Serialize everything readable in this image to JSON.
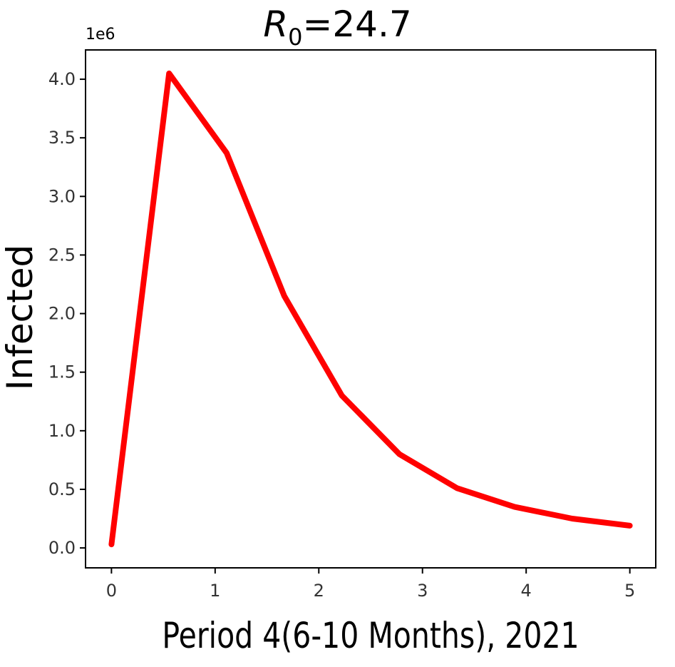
{
  "chart_data": {
    "type": "line",
    "title_symbol": "R",
    "title_subscript": "0",
    "title_rest": "=24.7",
    "xlabel": "Period 4(6-10 Months), 2021",
    "ylabel": "Infected",
    "y_offset_label": "1e6",
    "xlim": [
      -0.25,
      5.25
    ],
    "ylim": [
      -0.17,
      4.25
    ],
    "x_ticks": [
      0,
      1,
      2,
      3,
      4,
      5
    ],
    "y_ticks": [
      0.0,
      0.5,
      1.0,
      1.5,
      2.0,
      2.5,
      3.0,
      3.5,
      4.0
    ],
    "y_tick_labels": [
      "0.0",
      "0.5",
      "1.0",
      "1.5",
      "2.0",
      "2.5",
      "3.0",
      "3.5",
      "4.0"
    ],
    "grid": false,
    "series": [
      {
        "color": "#ff0000",
        "x": [
          0.0,
          0.556,
          1.111,
          1.667,
          2.222,
          2.778,
          3.333,
          3.889,
          4.444,
          5.0
        ],
        "y": [
          0.03,
          4.05,
          3.37,
          2.15,
          1.3,
          0.8,
          0.51,
          0.35,
          0.25,
          0.19
        ]
      }
    ]
  }
}
